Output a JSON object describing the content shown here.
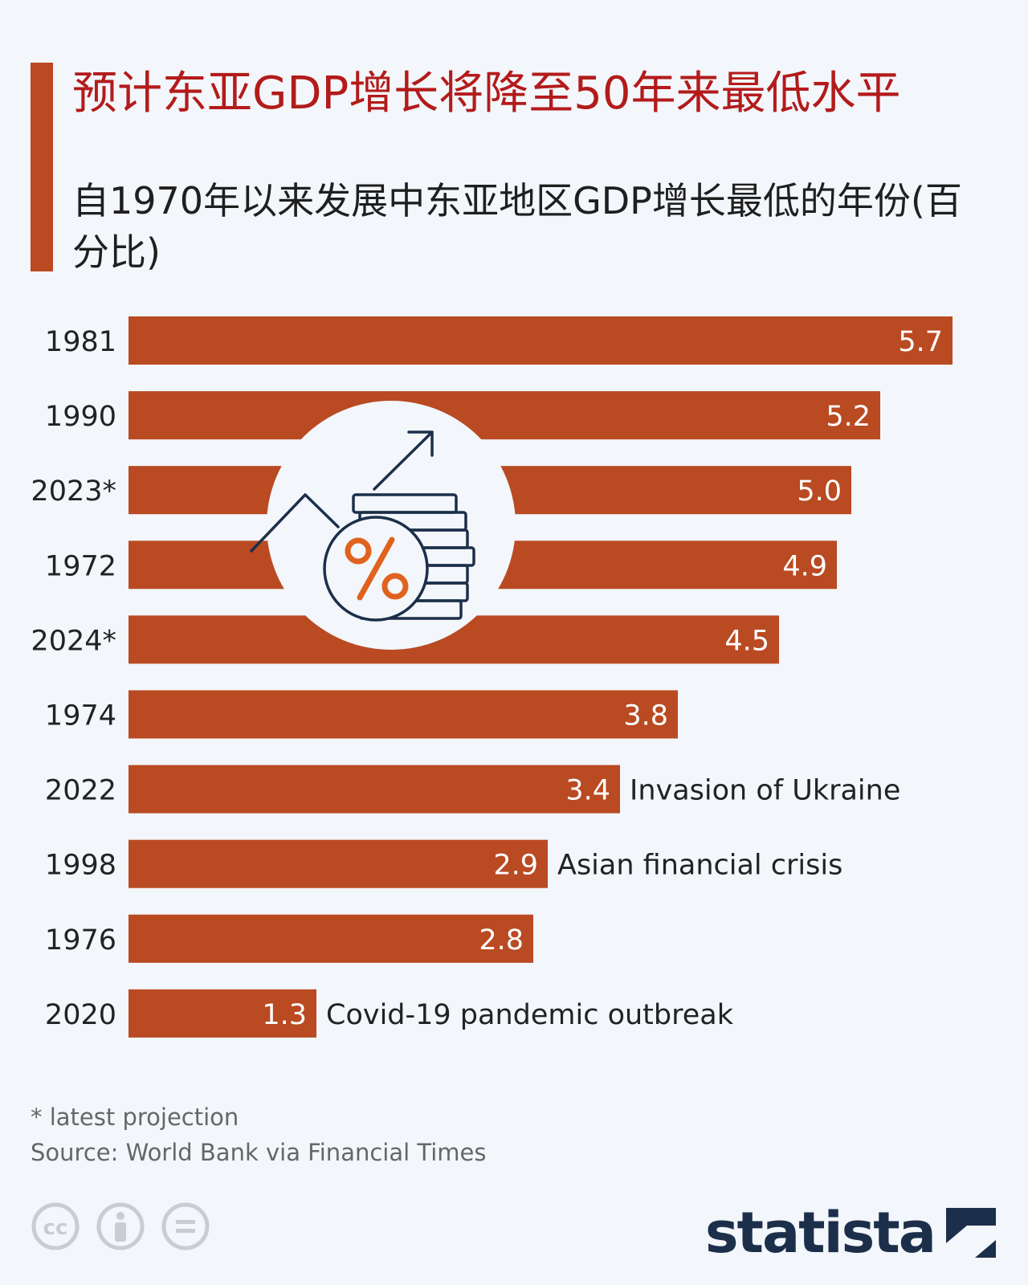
{
  "title": "预计东亚GDP增长将降至50年来最低水平",
  "subtitle": "自1970年以来发展中东亚地区GDP增长最低的年份(百分比)",
  "footnote": "* latest projection",
  "source": "Source: World Bank via Financial Times",
  "brand": "statista",
  "colors": {
    "bar": "#b94a22",
    "title": "#b31b1b",
    "accent": "#b94a22",
    "background": "#f3f6fa",
    "icon": "#1c2f4a"
  },
  "chart_data": {
    "type": "bar",
    "orientation": "horizontal",
    "categories": [
      "1981",
      "1990",
      "2023*",
      "1972",
      "2024*",
      "1974",
      "2022",
      "1998",
      "1976",
      "2020"
    ],
    "values": [
      5.7,
      5.2,
      5.0,
      4.9,
      4.5,
      3.8,
      3.4,
      2.9,
      2.8,
      1.3
    ],
    "value_labels": [
      "5.7",
      "5.2",
      "5.0",
      "4.9",
      "4.5",
      "3.8",
      "3.4",
      "2.9",
      "2.8",
      "1.3"
    ],
    "annotations": [
      "",
      "",
      "",
      "",
      "",
      "",
      "Invasion of Ukraine",
      "Asian financial crisis",
      "",
      "Covid-19 pandemic outbreak"
    ],
    "xlim": [
      0,
      5.7
    ],
    "grid": false,
    "legend": "none"
  }
}
